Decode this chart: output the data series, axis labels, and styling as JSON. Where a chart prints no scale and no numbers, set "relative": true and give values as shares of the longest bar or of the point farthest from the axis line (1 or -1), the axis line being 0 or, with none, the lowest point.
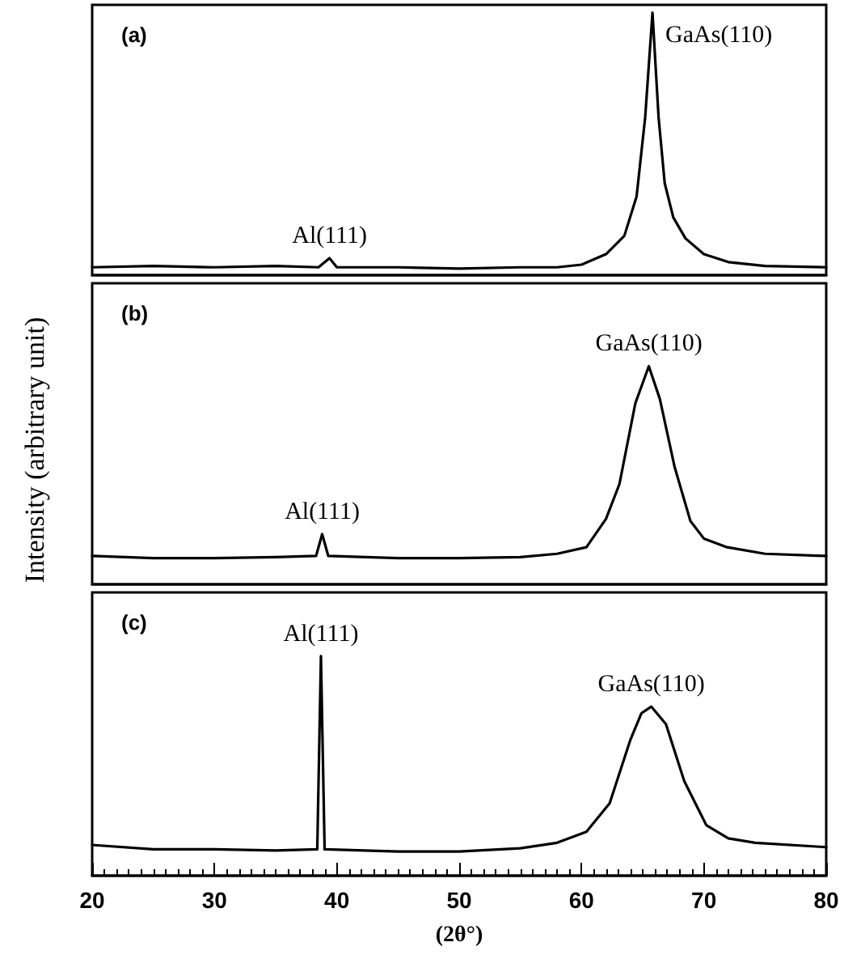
{
  "chart_data": [
    {
      "type": "line",
      "title": "(a)",
      "relative": true,
      "xlim": [
        20,
        80
      ],
      "xticks": [
        20,
        30,
        40,
        50,
        60,
        70,
        80
      ],
      "tick_labels": false,
      "grid": false,
      "marker": "none",
      "line_style": "solid",
      "series": [
        {
          "color": "#000000",
          "x": [
            20,
            25,
            30,
            35,
            38.5,
            39.4,
            40,
            45,
            50,
            55,
            58,
            60,
            62,
            63.5,
            64.5,
            65.2,
            65.8,
            66.3,
            66.8,
            67.5,
            68.5,
            70,
            72,
            75,
            80
          ],
          "values": [
            0.03,
            0.035,
            0.03,
            0.035,
            0.03,
            0.065,
            0.03,
            0.03,
            0.025,
            0.03,
            0.03,
            0.04,
            0.08,
            0.15,
            0.3,
            0.6,
            1,
            0.6,
            0.35,
            0.22,
            0.14,
            0.08,
            0.05,
            0.035,
            0.03
          ]
        }
      ],
      "annotations": [
        {
          "text": "Al(111)",
          "x": 39.4,
          "y": 0.065
        },
        {
          "text": "GaAs(110)",
          "x": 65.8,
          "y": 1
        }
      ]
    },
    {
      "type": "line",
      "title": "(b)",
      "ylabel": "Intensity (arbitrary unit)",
      "relative": true,
      "xlim": [
        20,
        80
      ],
      "xticks": [
        20,
        30,
        40,
        50,
        60,
        70,
        80
      ],
      "tick_labels": false,
      "grid": false,
      "marker": "none",
      "line_style": "solid",
      "series": [
        {
          "color": "#000000",
          "x": [
            20,
            25,
            30,
            35,
            38.3,
            38.8,
            39.3,
            45,
            50,
            55,
            58,
            60.4,
            62,
            63.1,
            64.4,
            65.5,
            66.4,
            67.6,
            68.9,
            70,
            71.9,
            75,
            80
          ],
          "values": [
            0.13,
            0.12,
            0.12,
            0.125,
            0.13,
            0.23,
            0.13,
            0.12,
            0.12,
            0.125,
            0.14,
            0.17,
            0.3,
            0.46,
            0.83,
            1,
            0.85,
            0.54,
            0.29,
            0.21,
            0.17,
            0.14,
            0.13
          ]
        }
      ],
      "annotations": [
        {
          "text": "Al(111)",
          "x": 38.8,
          "y": 0.23
        },
        {
          "text": "GaAs(110)",
          "x": 65.5,
          "y": 1
        }
      ]
    },
    {
      "type": "line",
      "title": "(c)",
      "xlabel": "(2θ°)",
      "relative": true,
      "xlim": [
        20,
        80
      ],
      "xticks": [
        20,
        30,
        40,
        50,
        60,
        70,
        80
      ],
      "tick_labels": "x",
      "grid": false,
      "marker": "none",
      "line_style": "solid",
      "series": [
        {
          "color": "#000000",
          "x": [
            20,
            25,
            30,
            35,
            38.4,
            38.7,
            39.0,
            45,
            50,
            55,
            58,
            60.4,
            62.3,
            64,
            64.9,
            65.7,
            66.9,
            68.4,
            70.2,
            72,
            74.2,
            80
          ],
          "values": [
            0.14,
            0.12,
            0.12,
            0.115,
            0.12,
            1,
            0.12,
            0.11,
            0.11,
            0.125,
            0.15,
            0.2,
            0.33,
            0.62,
            0.74,
            0.77,
            0.69,
            0.43,
            0.23,
            0.17,
            0.15,
            0.13
          ]
        }
      ],
      "annotations": [
        {
          "text": "Al(111)",
          "x": 38.7,
          "y": 1
        },
        {
          "text": "GaAs(110)",
          "x": 65.7,
          "y": 0.77
        }
      ]
    }
  ]
}
